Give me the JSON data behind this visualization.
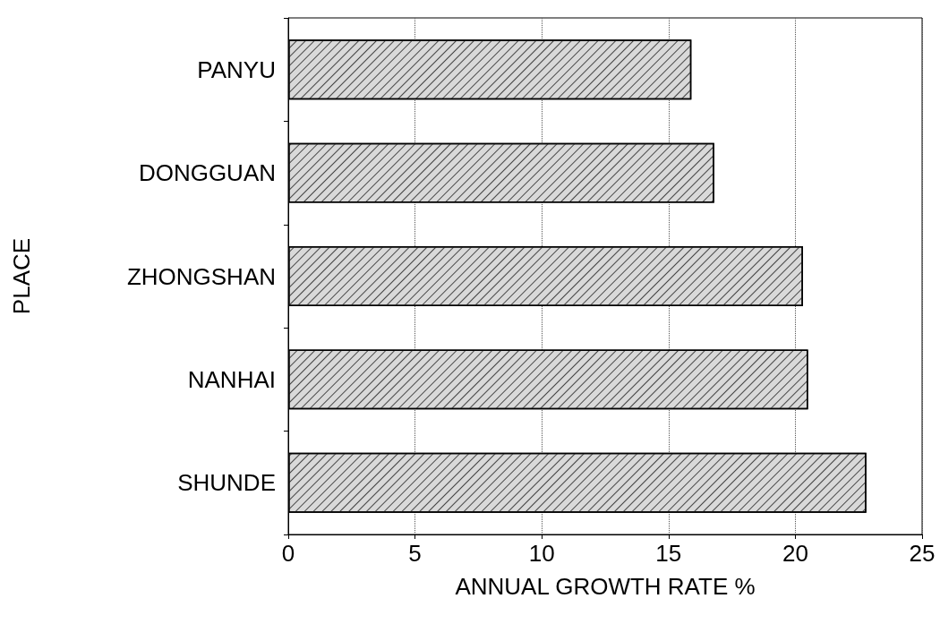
{
  "chart_data": {
    "type": "bar",
    "orientation": "horizontal",
    "xlabel": "ANNUAL GROWTH RATE %",
    "ylabel": "PLACE",
    "categories": [
      "PANYU",
      "DONGGUAN",
      "ZHONGSHAN",
      "NANHAI",
      "SHUNDE"
    ],
    "values": [
      15.9,
      16.8,
      20.3,
      20.5,
      22.8
    ],
    "color": "#d9d9d9",
    "xlim": [
      0,
      25
    ],
    "xticks": [
      0,
      5,
      10,
      15,
      20,
      25
    ],
    "grid": "x",
    "line_style": "dotted"
  }
}
